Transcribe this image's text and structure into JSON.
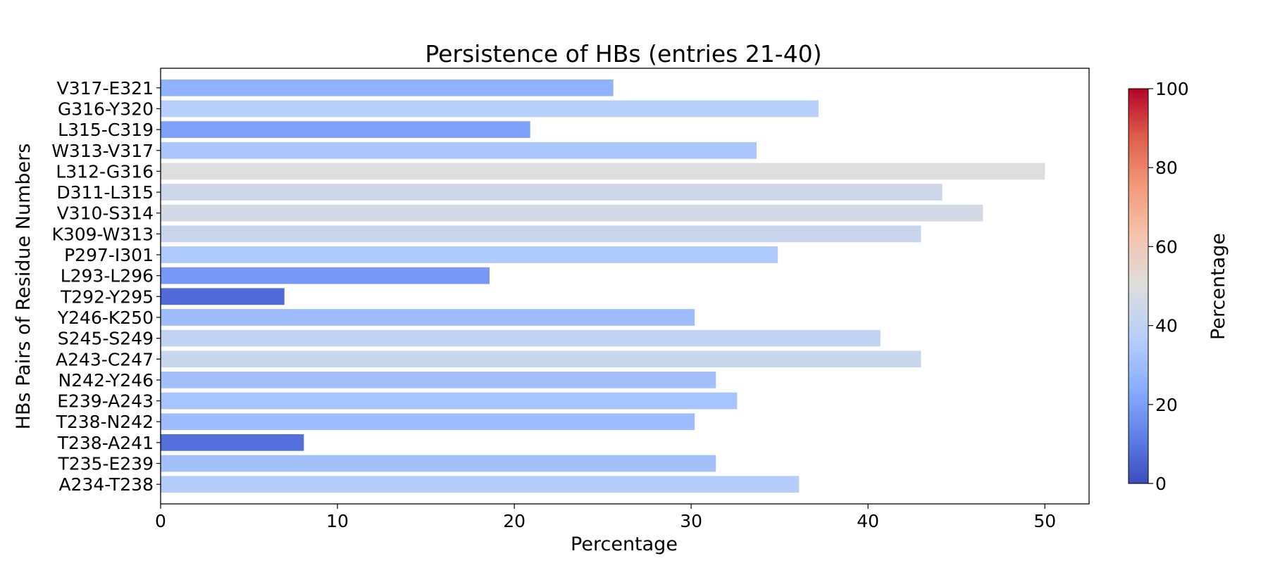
{
  "chart_data": {
    "type": "bar",
    "orientation": "horizontal",
    "title": "Persistence of HBs (entries 21-40)",
    "xlabel": "Percentage",
    "ylabel": "HBs Pairs of Residue Numbers",
    "xlim": [
      0,
      52.5
    ],
    "xticks": [
      "0",
      "10",
      "20",
      "30",
      "40",
      "50"
    ],
    "grid": false,
    "categories": [
      "A234-T238",
      "T235-E239",
      "T238-A241",
      "T238-N242",
      "E239-A243",
      "N242-Y246",
      "A243-C247",
      "S245-S249",
      "Y246-K250",
      "T292-Y295",
      "L293-L296",
      "P297-I301",
      "K309-W313",
      "V310-S314",
      "D311-L315",
      "L312-G316",
      "W313-V317",
      "L315-C319",
      "G316-Y320",
      "V317-E321"
    ],
    "values": [
      36.1,
      31.4,
      8.1,
      30.2,
      32.6,
      31.4,
      43.0,
      40.7,
      30.2,
      7.0,
      18.6,
      34.9,
      43.0,
      46.5,
      44.2,
      50.0,
      33.7,
      20.9,
      37.2,
      25.6
    ],
    "colormap": "coolwarm",
    "colorbar": {
      "label": "Percentage",
      "range": [
        0,
        100
      ],
      "ticks": [
        "0",
        "20",
        "40",
        "60",
        "80",
        "100"
      ]
    }
  }
}
